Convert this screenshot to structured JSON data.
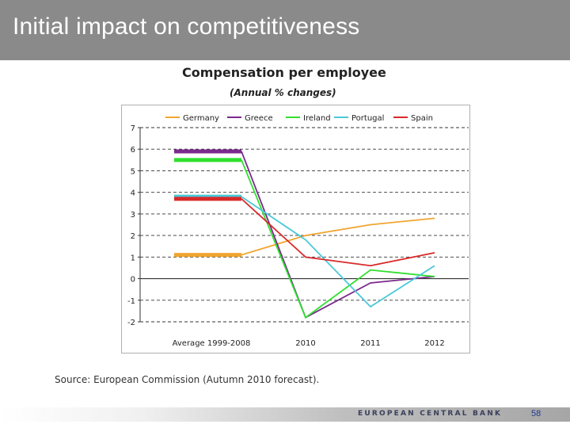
{
  "slide": {
    "title": "Initial impact on competitiveness",
    "source": "Source: European Commission (Autumn 2010 forecast).",
    "footer_org": "EUROPEAN CENTRAL BANK",
    "page_number": "58"
  },
  "chart_data": {
    "type": "line",
    "title": "Compensation per employee",
    "subtitle": "(Annual % changes)",
    "categories": [
      "Average 1999-2008",
      "2010",
      "2011",
      "2012"
    ],
    "ylim": [
      -2,
      7
    ],
    "yticks": [
      "7",
      "6",
      "5",
      "4",
      "3",
      "2",
      "1",
      "0",
      "-1",
      "-2"
    ],
    "grid": true,
    "legend_position": "top",
    "series": [
      {
        "name": "Germany",
        "color": "#f0a530",
        "values": [
          1.1,
          2.0,
          2.5,
          2.8
        ]
      },
      {
        "name": "Greece",
        "color": "#7b2a8c",
        "values": [
          5.9,
          -1.8,
          -0.2,
          0.1
        ]
      },
      {
        "name": "Ireland",
        "color": "#2fe02f",
        "values": [
          5.5,
          -1.8,
          0.4,
          0.1
        ]
      },
      {
        "name": "Portugal",
        "color": "#4ac8d8",
        "values": [
          3.8,
          1.8,
          -1.3,
          0.6
        ]
      },
      {
        "name": "Spain",
        "color": "#d92a2a",
        "values": [
          3.7,
          1.0,
          0.6,
          1.2
        ]
      }
    ]
  }
}
